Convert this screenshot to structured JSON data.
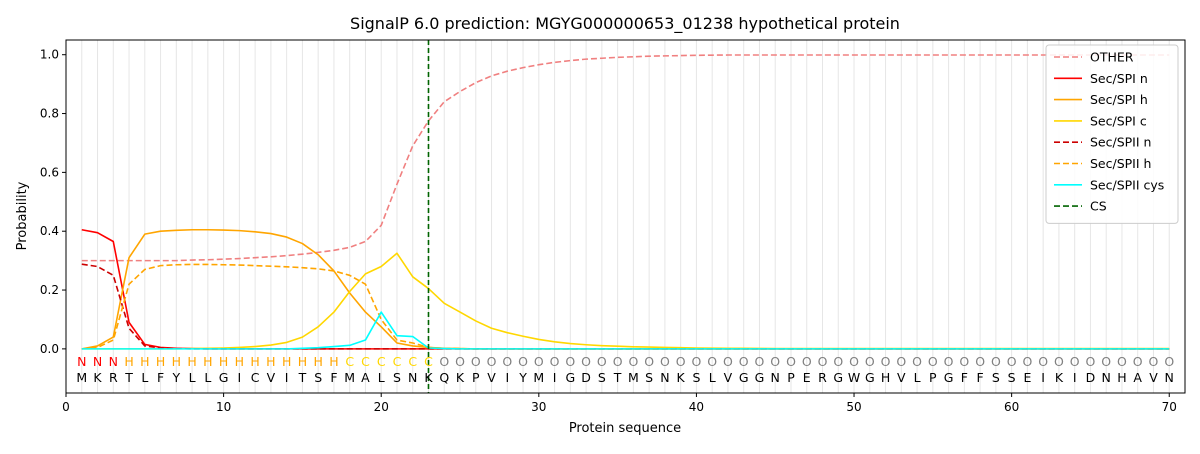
{
  "chart_data": {
    "type": "line",
    "title": "SignalP 6.0 prediction: MGYG000000653_01238 hypothetical protein",
    "xlabel": "Protein sequence",
    "ylabel": "Probability",
    "xlim": [
      0,
      71
    ],
    "ylim": [
      -0.15,
      1.05
    ],
    "x_ticks": [
      0,
      10,
      20,
      30,
      40,
      50,
      60,
      70
    ],
    "y_ticks": [
      0.0,
      0.2,
      0.4,
      0.6,
      0.8,
      1.0
    ],
    "y_tick_labels": [
      "0.0",
      "0.2",
      "0.4",
      "0.6",
      "0.8",
      "1.0"
    ],
    "grid": "vertical lines at each residue",
    "legend_position": "top-right",
    "sequence": [
      "M",
      "K",
      "R",
      "T",
      "L",
      "F",
      "Y",
      "L",
      "L",
      "G",
      "I",
      "C",
      "V",
      "I",
      "T",
      "S",
      "F",
      "M",
      "A",
      "L",
      "S",
      "N",
      "K",
      "Q",
      "K",
      "P",
      "V",
      "I",
      "Y",
      "M",
      "I",
      "G",
      "D",
      "S",
      "T",
      "M",
      "S",
      "N",
      "K",
      "S",
      "L",
      "V",
      "G",
      "G",
      "N",
      "P",
      "E",
      "R",
      "G",
      "W",
      "G",
      "H",
      "V",
      "L",
      "P",
      "G",
      "F",
      "F",
      "S",
      "S",
      "E",
      "I",
      "K",
      "I",
      "D",
      "N",
      "H",
      "A",
      "V",
      "N"
    ],
    "labels": [
      "N",
      "N",
      "N",
      "H",
      "H",
      "H",
      "H",
      "H",
      "H",
      "H",
      "H",
      "H",
      "H",
      "H",
      "H",
      "H",
      "H",
      "C",
      "C",
      "C",
      "C",
      "C",
      "C",
      "O",
      "O",
      "O",
      "O",
      "O",
      "O",
      "O",
      "O",
      "O",
      "O",
      "O",
      "O",
      "O",
      "O",
      "O",
      "O",
      "O",
      "O",
      "O",
      "O",
      "O",
      "O",
      "O",
      "O",
      "O",
      "O",
      "O",
      "O",
      "O",
      "O",
      "O",
      "O",
      "O",
      "O",
      "O",
      "O",
      "O",
      "O",
      "O",
      "O",
      "O",
      "O",
      "O",
      "O",
      "O",
      "O",
      "O"
    ],
    "label_colors": {
      "N": "#ff0000",
      "H": "#ffa500",
      "C": "#ffd700",
      "O": "#808080"
    },
    "cs_position": 23,
    "series": [
      {
        "name": "OTHER",
        "color": "#f08080",
        "dash": "dashed",
        "values": [
          0.3,
          0.3,
          0.3,
          0.3,
          0.3,
          0.3,
          0.3,
          0.302,
          0.303,
          0.305,
          0.307,
          0.31,
          0.313,
          0.317,
          0.322,
          0.328,
          0.335,
          0.345,
          0.365,
          0.42,
          0.56,
          0.69,
          0.775,
          0.84,
          0.875,
          0.905,
          0.928,
          0.944,
          0.956,
          0.966,
          0.974,
          0.98,
          0.985,
          0.988,
          0.991,
          0.993,
          0.995,
          0.996,
          0.997,
          0.998,
          0.9985,
          0.999,
          0.999,
          0.999,
          0.999,
          0.999,
          0.999,
          0.999,
          0.999,
          0.999,
          0.999,
          0.999,
          0.999,
          0.999,
          0.999,
          0.999,
          0.999,
          0.999,
          0.999,
          0.999,
          0.999,
          0.999,
          0.999,
          0.999,
          0.999,
          0.999,
          0.999,
          0.999,
          0.999,
          0.999
        ]
      },
      {
        "name": "Sec/SPI n",
        "color": "#ff0000",
        "dash": "solid",
        "values": [
          0.405,
          0.395,
          0.365,
          0.09,
          0.015,
          0.005,
          0.002,
          0.001,
          0,
          0,
          0,
          0,
          0,
          0,
          0,
          0,
          0,
          0,
          0,
          0,
          0,
          0,
          0,
          0,
          0,
          0,
          0,
          0,
          0,
          0,
          0,
          0,
          0,
          0,
          0,
          0,
          0,
          0,
          0,
          0,
          0,
          0,
          0,
          0,
          0,
          0,
          0,
          0,
          0,
          0,
          0,
          0,
          0,
          0,
          0,
          0,
          0,
          0,
          0,
          0,
          0,
          0,
          0,
          0,
          0,
          0,
          0,
          0,
          0,
          0
        ]
      },
      {
        "name": "Sec/SPI h",
        "color": "#ffa500",
        "dash": "solid",
        "values": [
          0.0,
          0.01,
          0.04,
          0.31,
          0.39,
          0.4,
          0.403,
          0.405,
          0.405,
          0.404,
          0.402,
          0.398,
          0.392,
          0.38,
          0.358,
          0.32,
          0.265,
          0.19,
          0.125,
          0.075,
          0.02,
          0.01,
          0.005,
          0.002,
          0.001,
          0,
          0,
          0,
          0,
          0,
          0,
          0,
          0,
          0,
          0,
          0,
          0,
          0,
          0,
          0,
          0,
          0,
          0,
          0,
          0,
          0,
          0,
          0,
          0,
          0,
          0,
          0,
          0,
          0,
          0,
          0,
          0,
          0,
          0,
          0,
          0,
          0,
          0,
          0,
          0,
          0,
          0,
          0,
          0,
          0
        ]
      },
      {
        "name": "Sec/SPI c",
        "color": "#ffd700",
        "dash": "solid",
        "values": [
          0,
          0,
          0,
          0,
          0,
          0,
          0,
          0.001,
          0.002,
          0.003,
          0.005,
          0.008,
          0.013,
          0.022,
          0.04,
          0.075,
          0.125,
          0.195,
          0.255,
          0.28,
          0.325,
          0.245,
          0.205,
          0.155,
          0.125,
          0.095,
          0.07,
          0.055,
          0.043,
          0.032,
          0.024,
          0.018,
          0.014,
          0.011,
          0.009,
          0.007,
          0.006,
          0.005,
          0.004,
          0.003,
          0.0025,
          0.002,
          0.0018,
          0.0015,
          0.0013,
          0.0012,
          0.001,
          0.001,
          0.001,
          0.001,
          0.001,
          0.001,
          0.001,
          0.001,
          0.001,
          0.001,
          0.001,
          0.001,
          0.001,
          0.001,
          0.001,
          0.001,
          0.001,
          0.001,
          0.001,
          0.001,
          0.001,
          0.001,
          0.001,
          0.001
        ]
      },
      {
        "name": "Sec/SPII n",
        "color": "#cc0000",
        "dash": "dashed",
        "values": [
          0.288,
          0.28,
          0.25,
          0.07,
          0.01,
          0.003,
          0.001,
          0,
          0,
          0,
          0,
          0,
          0,
          0,
          0,
          0,
          0,
          0,
          0,
          0,
          0,
          0,
          0,
          0,
          0,
          0,
          0,
          0,
          0,
          0,
          0,
          0,
          0,
          0,
          0,
          0,
          0,
          0,
          0,
          0,
          0,
          0,
          0,
          0,
          0,
          0,
          0,
          0,
          0,
          0,
          0,
          0,
          0,
          0,
          0,
          0,
          0,
          0,
          0,
          0,
          0,
          0,
          0,
          0,
          0,
          0,
          0,
          0,
          0,
          0
        ]
      },
      {
        "name": "Sec/SPII h",
        "color": "#ffa500",
        "dash": "dashed",
        "values": [
          0.0,
          0.005,
          0.03,
          0.22,
          0.27,
          0.283,
          0.286,
          0.287,
          0.287,
          0.286,
          0.285,
          0.283,
          0.281,
          0.279,
          0.276,
          0.272,
          0.265,
          0.25,
          0.22,
          0.1,
          0.03,
          0.02,
          0.005,
          0.002,
          0.001,
          0,
          0,
          0,
          0,
          0,
          0,
          0,
          0,
          0,
          0,
          0,
          0,
          0,
          0,
          0,
          0,
          0,
          0,
          0,
          0,
          0,
          0,
          0,
          0,
          0,
          0,
          0,
          0,
          0,
          0,
          0,
          0,
          0,
          0,
          0,
          0,
          0,
          0,
          0,
          0,
          0,
          0,
          0,
          0,
          0
        ]
      },
      {
        "name": "Sec/SPII cys",
        "color": "#00ffff",
        "dash": "solid",
        "values": [
          0,
          0,
          0,
          0,
          0,
          0,
          0,
          0,
          0,
          0,
          0,
          0,
          0,
          0,
          0.002,
          0.004,
          0.008,
          0.012,
          0.03,
          0.125,
          0.045,
          0.042,
          0.003,
          0.001,
          0,
          0,
          0,
          0,
          0,
          0,
          0,
          0,
          0,
          0,
          0,
          0,
          0,
          0,
          0,
          0,
          0,
          0,
          0,
          0,
          0,
          0,
          0,
          0,
          0,
          0,
          0,
          0,
          0,
          0,
          0,
          0,
          0,
          0,
          0,
          0,
          0,
          0,
          0,
          0,
          0,
          0,
          0,
          0,
          0,
          0
        ]
      }
    ],
    "legend": [
      {
        "name": "OTHER",
        "color": "#f08080",
        "dash": "dashed"
      },
      {
        "name": "Sec/SPI n",
        "color": "#ff0000",
        "dash": "solid"
      },
      {
        "name": "Sec/SPI h",
        "color": "#ffa500",
        "dash": "solid"
      },
      {
        "name": "Sec/SPI c",
        "color": "#ffd700",
        "dash": "solid"
      },
      {
        "name": "Sec/SPII n",
        "color": "#cc0000",
        "dash": "dashed"
      },
      {
        "name": "Sec/SPII h",
        "color": "#ffa500",
        "dash": "dashed"
      },
      {
        "name": "Sec/SPII cys",
        "color": "#00ffff",
        "dash": "solid"
      },
      {
        "name": "CS",
        "color": "#006400",
        "dash": "dashed"
      }
    ]
  }
}
